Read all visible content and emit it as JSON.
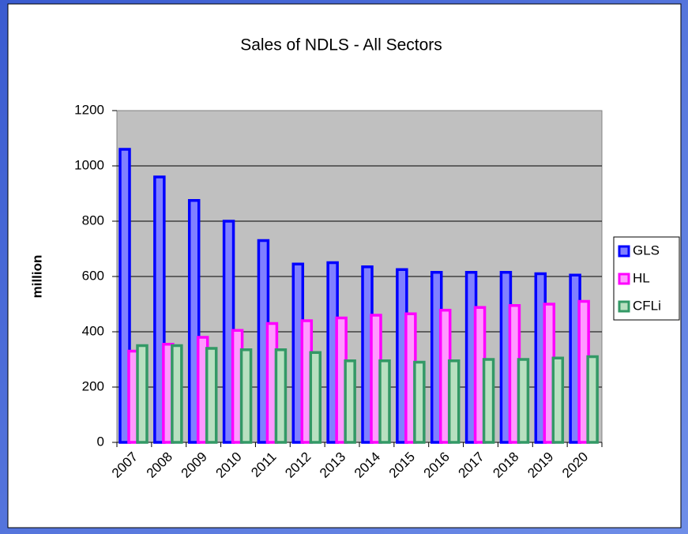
{
  "chart_data": {
    "type": "bar",
    "title": "Sales of NDLS - All Sectors",
    "y_label": "million",
    "categories": [
      "2007",
      "2008",
      "2009",
      "2010",
      "2011",
      "2012",
      "2013",
      "2014",
      "2015",
      "2016",
      "2017",
      "2018",
      "2019",
      "2020"
    ],
    "series": [
      {
        "name": "GLS",
        "color": "#0000ff",
        "values": [
          1060,
          960,
          875,
          800,
          730,
          645,
          650,
          635,
          625,
          615,
          615,
          615,
          610,
          605
        ]
      },
      {
        "name": "HL",
        "color": "#ff00ff",
        "values": [
          330,
          355,
          380,
          405,
          430,
          440,
          450,
          460,
          465,
          478,
          488,
          495,
          500,
          510
        ]
      },
      {
        "name": "CFLi",
        "color": "#339966",
        "values": [
          350,
          350,
          340,
          335,
          335,
          325,
          295,
          295,
          290,
          295,
          300,
          300,
          305,
          310
        ]
      }
    ],
    "ylim": [
      0,
      1200
    ],
    "yticks": [
      0,
      200,
      400,
      600,
      800,
      1000,
      1200
    ],
    "grid": true,
    "legend": "right"
  }
}
